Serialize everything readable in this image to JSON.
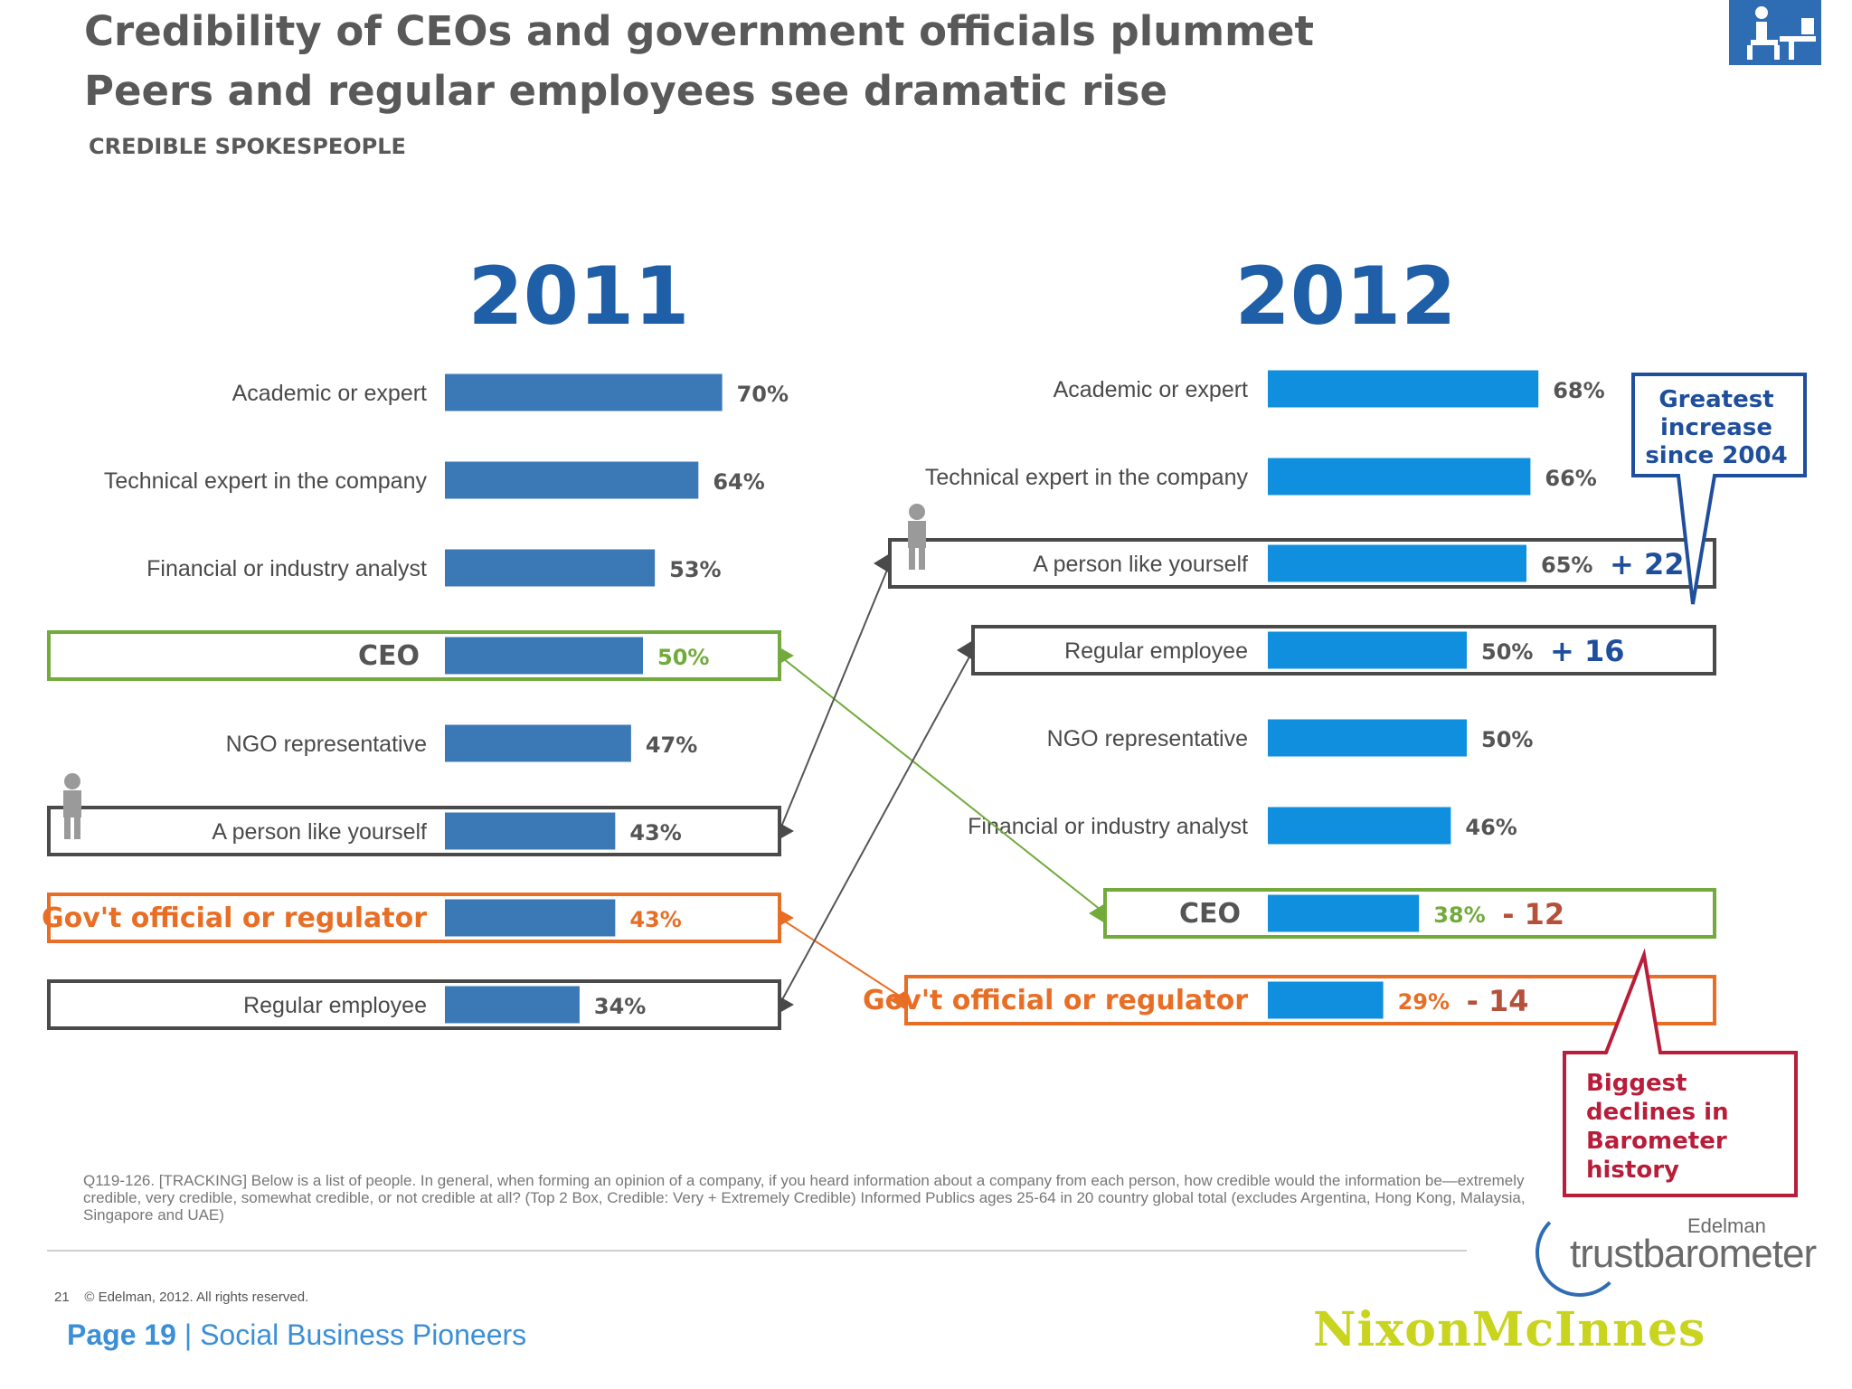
{
  "header": {
    "title_line1": "Credibility of CEOs and government officials plummet",
    "title_line2": "Peers and regular employees see dramatic rise",
    "section_label": "CREDIBLE SPOKESPEOPLE"
  },
  "colors": {
    "bar_2011": "#3b78b6",
    "bar_2012": "#0f8fde",
    "year_text": "#1f5fa8",
    "green_box": "#72ab3c",
    "orange_box": "#e86e26",
    "dark_box": "#4a4a4a",
    "callout_blue": "#1f4f9c",
    "callout_red": "#b81d3a"
  },
  "chart_data": [
    {
      "type": "bar",
      "year_label": "2011",
      "categories": [
        "Academic or expert",
        "Technical expert in the company",
        "Financial or industry analyst",
        "CEO",
        "NGO representative",
        "A person like yourself",
        "Government official or regulator",
        "Regular employee"
      ],
      "values": [
        70,
        64,
        53,
        50,
        47,
        43,
        43,
        34
      ],
      "value_labels": [
        "70%",
        "64%",
        "53%",
        "50%",
        "47%",
        "43%",
        "43%",
        "34%"
      ],
      "box_labels": [
        null,
        null,
        null,
        "CEO",
        null,
        null,
        "Gov't official or regulator",
        null
      ],
      "highlight": [
        null,
        null,
        null,
        "green",
        null,
        "dark",
        "orange",
        "dark"
      ],
      "xlim": [
        0,
        100
      ]
    },
    {
      "type": "bar",
      "year_label": "2012",
      "categories": [
        "Academic or expert",
        "Technical expert in the company",
        "A person like yourself",
        "Regular employee",
        "NGO representative",
        "Financial or industry analyst",
        "CEO",
        "Government official or regulator"
      ],
      "values": [
        68,
        66,
        65,
        50,
        50,
        46,
        38,
        29
      ],
      "value_labels": [
        "68%",
        "66%",
        "65%",
        "50%",
        "50%",
        "46%",
        "38%",
        "29%"
      ],
      "box_labels": [
        null,
        null,
        null,
        null,
        null,
        null,
        "CEO",
        "Gov't official or regulator"
      ],
      "changes": [
        null,
        null,
        "+ 22",
        "+ 16",
        null,
        null,
        "- 12",
        "- 14"
      ],
      "highlight": [
        null,
        null,
        "dark",
        "dark",
        null,
        null,
        "green",
        "orange"
      ],
      "xlim": [
        0,
        100
      ]
    }
  ],
  "callouts": {
    "greatest_increase": "Greatest increase since 2004",
    "biggest_declines": "Biggest declines in Barometer history"
  },
  "footer": {
    "footnote": "Q119-126. [TRACKING] Below is a list of people. In general, when forming an opinion of a company, if you heard information about a company from each person, how credible would the information be—extremely credible, very credible, somewhat credible, or not credible at all? (Top 2 Box, Credible: Very + Extremely Credible) Informed Publics ages 25-64 in 20 country global total (excludes Argentina, Hong Kong, Malaysia, Singapore and UAE)",
    "copyright_num": "21",
    "copyright": "© Edelman, 2012. All rights reserved.",
    "page_label": "Page 19",
    "page_suffix": " | Social Business Pioneers",
    "edelman": "Edelman",
    "trustbarometer": "trustbarometer",
    "nixon": "NixonMcInnes"
  },
  "icons": [
    "person-icon",
    "desk-icon"
  ]
}
